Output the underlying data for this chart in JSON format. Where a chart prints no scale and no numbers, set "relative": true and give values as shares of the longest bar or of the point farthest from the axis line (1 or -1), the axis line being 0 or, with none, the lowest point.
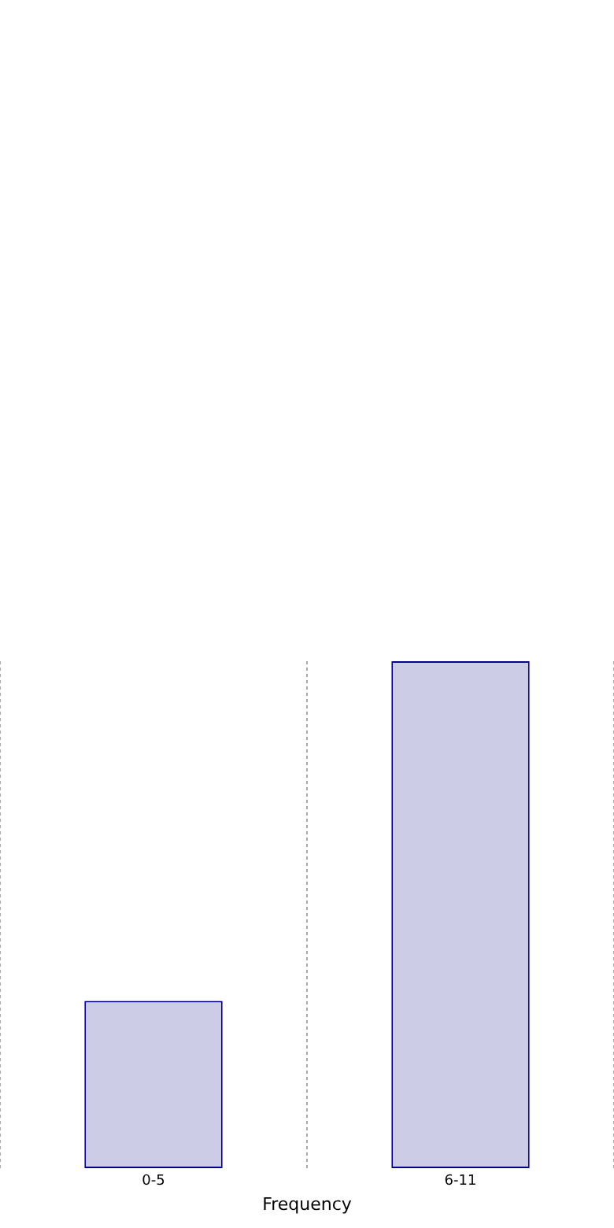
{
  "chart_data": {
    "type": "bar",
    "xlabel": "Frequency",
    "categories": [
      "0-5",
      "6-11"
    ],
    "values": [
      0.33,
      1
    ],
    "relative": true,
    "color": "#cccce6",
    "grid": "x",
    "legend": false
  }
}
